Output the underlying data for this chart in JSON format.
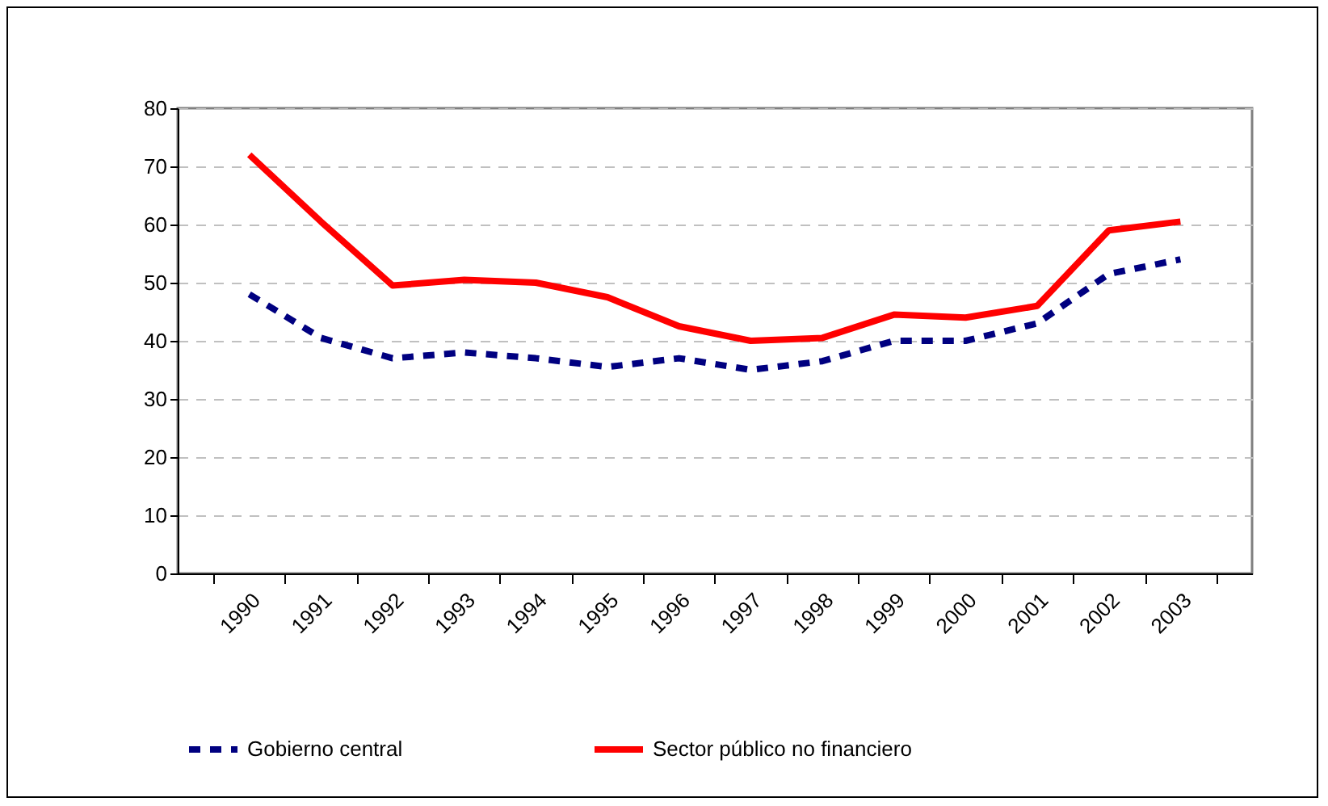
{
  "chart_data": {
    "type": "line",
    "categories": [
      "1990",
      "1991",
      "1992",
      "1993",
      "1994",
      "1995",
      "1996",
      "1997",
      "1998",
      "1999",
      "2000",
      "2001",
      "2002",
      "2003"
    ],
    "series": [
      {
        "name": "Gobierno central",
        "color": "#000080",
        "line_style": "dashed",
        "values": [
          48,
          40.5,
          37,
          38,
          37,
          35.5,
          37,
          35,
          36.5,
          40,
          40,
          43,
          51.5,
          54
        ]
      },
      {
        "name": "Sector público no financiero",
        "color": "#ff0000",
        "line_style": "solid",
        "values": [
          72,
          60.5,
          49.5,
          50.5,
          50,
          47.5,
          42.5,
          40,
          40.5,
          44.5,
          44,
          46,
          59,
          60.5
        ]
      }
    ],
    "ylim": [
      0,
      80
    ],
    "yticks": [
      0,
      10,
      20,
      30,
      40,
      50,
      60,
      70,
      80
    ],
    "grid": "y",
    "legend": "bottom",
    "marker": "none"
  }
}
